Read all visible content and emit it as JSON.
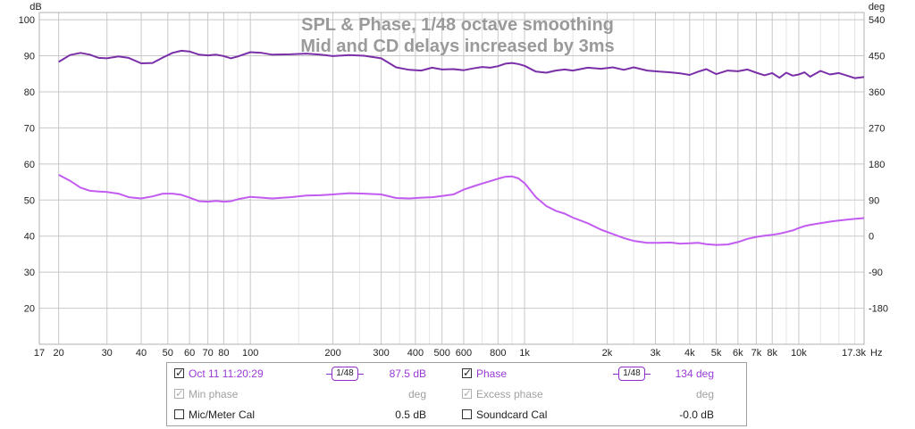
{
  "chart_data": {
    "type": "line",
    "title": "SPL & Phase, 1/48 octave smoothing",
    "subtitle": "Mid and CD delays increased by 3ms",
    "xlabel": "Hz",
    "ylabel": "dB",
    "y2label": "deg",
    "xscale": "log",
    "xlim": [
      17,
      17300
    ],
    "ylim": [
      10,
      102
    ],
    "y2lim": [
      -270,
      558
    ],
    "grid": true,
    "x_ticks": [
      {
        "v": 17,
        "l": "17"
      },
      {
        "v": 20,
        "l": "20"
      },
      {
        "v": 30,
        "l": "30"
      },
      {
        "v": 40,
        "l": "40"
      },
      {
        "v": 50,
        "l": "50"
      },
      {
        "v": 60,
        "l": "60"
      },
      {
        "v": 70,
        "l": "70"
      },
      {
        "v": 80,
        "l": "80"
      },
      {
        "v": 100,
        "l": "100"
      },
      {
        "v": 200,
        "l": "200"
      },
      {
        "v": 300,
        "l": "300"
      },
      {
        "v": 400,
        "l": "400"
      },
      {
        "v": 500,
        "l": "500"
      },
      {
        "v": 600,
        "l": "600"
      },
      {
        "v": 800,
        "l": "800"
      },
      {
        "v": 1000,
        "l": "1k"
      },
      {
        "v": 2000,
        "l": "2k"
      },
      {
        "v": 3000,
        "l": "3k"
      },
      {
        "v": 4000,
        "l": "4k"
      },
      {
        "v": 5000,
        "l": "5k"
      },
      {
        "v": 6000,
        "l": "6k"
      },
      {
        "v": 7000,
        "l": "7k"
      },
      {
        "v": 8000,
        "l": "8k"
      },
      {
        "v": 10000,
        "l": "10k"
      },
      {
        "v": 17300,
        "l": "17.3k"
      }
    ],
    "x_minor_grid": [
      90,
      150,
      250,
      350,
      450,
      700,
      900,
      1500,
      2500,
      3500,
      4500,
      9000,
      12000,
      14000,
      16000
    ],
    "y_ticks": [
      20,
      30,
      40,
      50,
      60,
      70,
      80,
      90,
      100
    ],
    "y2_ticks": [
      -180,
      -90,
      0,
      90,
      180,
      270,
      360,
      450,
      540
    ],
    "series": [
      {
        "name": "Oct 11 11:20:29",
        "axis": "left",
        "color": "#7a2fa8",
        "x": [
          20,
          22,
          24,
          26,
          28,
          30,
          33,
          36,
          40,
          44,
          48,
          52,
          56,
          60,
          65,
          70,
          75,
          80,
          85,
          90,
          100,
          110,
          120,
          140,
          160,
          180,
          200,
          230,
          260,
          300,
          340,
          380,
          420,
          460,
          500,
          550,
          600,
          650,
          700,
          750,
          800,
          850,
          900,
          950,
          1000,
          1100,
          1200,
          1300,
          1400,
          1500,
          1700,
          1900,
          2100,
          2300,
          2500,
          2800,
          3100,
          3400,
          3700,
          4000,
          4300,
          4600,
          5000,
          5500,
          6000,
          6500,
          7000,
          7500,
          8000,
          8500,
          9000,
          9500,
          10000,
          10500,
          11000,
          12000,
          13000,
          14000,
          15000,
          16000,
          17300
        ],
        "y": [
          88.3,
          90.2,
          90.8,
          90.3,
          89.4,
          89.3,
          89.8,
          89.4,
          87.9,
          88.0,
          89.5,
          90.8,
          91.4,
          91.2,
          90.3,
          90.1,
          90.3,
          89.9,
          89.3,
          89.8,
          91.0,
          90.8,
          90.3,
          90.4,
          90.6,
          90.3,
          89.9,
          90.2,
          90.0,
          89.3,
          86.8,
          86.1,
          85.9,
          86.7,
          86.2,
          86.3,
          86.0,
          86.5,
          86.9,
          86.7,
          87.1,
          87.8,
          88.0,
          87.7,
          87.2,
          85.6,
          85.3,
          85.9,
          86.2,
          85.9,
          86.7,
          86.4,
          86.8,
          86.1,
          86.8,
          85.9,
          85.6,
          85.4,
          85.1,
          84.7,
          85.6,
          86.3,
          84.9,
          85.9,
          85.7,
          86.2,
          85.3,
          84.6,
          85.2,
          83.9,
          85.3,
          84.5,
          84.8,
          85.4,
          84.2,
          85.8,
          84.8,
          85.2,
          84.5,
          83.8,
          84.1
        ]
      },
      {
        "name": "Phase",
        "axis": "right",
        "color": "#c25cf0",
        "x": [
          20,
          22,
          24,
          26,
          28,
          30,
          33,
          36,
          40,
          44,
          48,
          52,
          56,
          60,
          65,
          70,
          75,
          80,
          85,
          90,
          100,
          110,
          120,
          140,
          160,
          180,
          200,
          230,
          260,
          300,
          340,
          380,
          420,
          460,
          500,
          550,
          600,
          650,
          700,
          750,
          800,
          850,
          900,
          950,
          1000,
          1100,
          1200,
          1300,
          1400,
          1500,
          1700,
          1900,
          2100,
          2300,
          2500,
          2800,
          3100,
          3400,
          3700,
          4000,
          4300,
          4600,
          5000,
          5500,
          6000,
          6500,
          7000,
          7500,
          8000,
          8500,
          9000,
          9500,
          10000,
          10500,
          11000,
          12000,
          13000,
          14000,
          15000,
          16000,
          17300
        ],
        "y": [
          153,
          138,
          121,
          113,
          111,
          110,
          106,
          97,
          94,
          99,
          106,
          106,
          103,
          96,
          87,
          86,
          88,
          86,
          87,
          92,
          98,
          96,
          94,
          97,
          101,
          102,
          104,
          107,
          106,
          104,
          95,
          94,
          96,
          97,
          100,
          104,
          116,
          124,
          131,
          137,
          143,
          148,
          149,
          144,
          132,
          97,
          75,
          63,
          56,
          46,
          32,
          16,
          5,
          -5,
          -12,
          -17,
          -17,
          -16,
          -19,
          -18,
          -17,
          -20,
          -22,
          -21,
          -15,
          -7,
          -2,
          1,
          3,
          6,
          10,
          14,
          20,
          25,
          28,
          32,
          36,
          39,
          41,
          43,
          45
        ]
      }
    ]
  },
  "legend": {
    "row1": {
      "name": "Oct 11 11:20:29",
      "smoothing": "1/48",
      "value": "87.5 dB",
      "name2": "Phase",
      "smoothing2": "1/48",
      "value2": "134 deg"
    },
    "row2": {
      "name": "Min phase",
      "value": "deg",
      "name2": "Excess phase",
      "value2": "deg"
    },
    "row3": {
      "name": "Mic/Meter Cal",
      "value": "0.5 dB",
      "name2": "Soundcard Cal",
      "value2": "-0.0 dB"
    }
  }
}
